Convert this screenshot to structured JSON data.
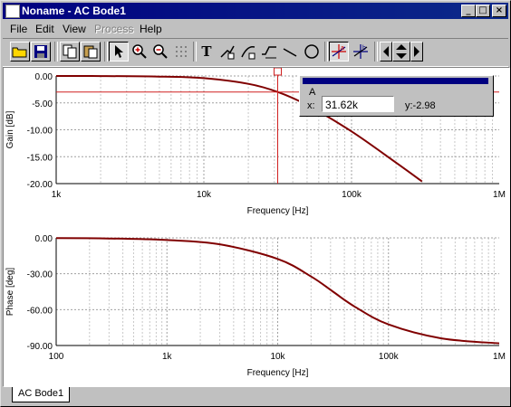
{
  "window": {
    "title": "Noname - AC Bode1",
    "minimize_glyph": "_",
    "maximize_glyph": "□",
    "close_glyph": "×"
  },
  "menu": {
    "items": [
      {
        "label": "File",
        "enabled": true
      },
      {
        "label": "Edit",
        "enabled": true
      },
      {
        "label": "View",
        "enabled": true
      },
      {
        "label": "Process",
        "enabled": false
      },
      {
        "label": "Help",
        "enabled": true
      }
    ]
  },
  "toolbar": {
    "icons": [
      "open-folder-icon",
      "save-icon",
      "copy-icon",
      "paste-icon",
      "pointer-icon",
      "zoom-in-icon",
      "zoom-out-icon",
      "grid-icon",
      "text-icon",
      "curve-tool-1-icon",
      "curve-tool-2-icon",
      "curve-tool-3-icon",
      "line-icon",
      "circle-icon",
      "cursor-a-icon",
      "cursor-b-icon",
      "arrow-left-icon",
      "arrow-updown-icon",
      "arrow-right-icon"
    ],
    "text_tool_glyph": "T"
  },
  "cursor": {
    "name": "A",
    "x_label": "x:",
    "x_value": "31.62k",
    "y_text": "y:-2.98",
    "color": "#d02020"
  },
  "tab": {
    "label": "AC Bode1"
  },
  "chart_data": [
    {
      "type": "line",
      "xlabel": "Frequency [Hz]",
      "ylabel": "Gain [dB]",
      "x_scale": "log",
      "xlim": [
        1000,
        1000000
      ],
      "ylim": [
        -20,
        0
      ],
      "grid": true,
      "x_ticks": [
        "1k",
        "10k",
        "100k",
        "1M"
      ],
      "y_ticks": [
        "0.00",
        "-5.00",
        "-10.00",
        "-15.00",
        "-20.00"
      ],
      "series": [
        {
          "color": "#800000",
          "x": [
            1000,
            2000,
            5000,
            10000,
            20000,
            31623,
            50000,
            100000,
            200000,
            300000
          ],
          "y": [
            0,
            -0.02,
            -0.11,
            -0.41,
            -1.46,
            -2.98,
            -5.4,
            -10.3,
            -16.1,
            -19.6
          ]
        }
      ]
    },
    {
      "type": "line",
      "xlabel": "Frequency [Hz]",
      "ylabel": "Phase [deg]",
      "x_scale": "log",
      "xlim": [
        100,
        1000000
      ],
      "ylim": [
        -90,
        0
      ],
      "grid": true,
      "x_ticks": [
        "100",
        "1k",
        "10k",
        "100k",
        "1M"
      ],
      "y_ticks": [
        "0.00",
        "-30.00",
        "-60.00",
        "-90.00"
      ],
      "series": [
        {
          "color": "#800000",
          "x": [
            100,
            300,
            1000,
            3000,
            10000,
            20000,
            31623,
            50000,
            100000,
            300000,
            1000000
          ],
          "y": [
            -0.2,
            -0.5,
            -1.8,
            -5.4,
            -17.6,
            -32.3,
            -45,
            -57.7,
            -72.4,
            -84.0,
            -88.2
          ]
        }
      ]
    }
  ]
}
